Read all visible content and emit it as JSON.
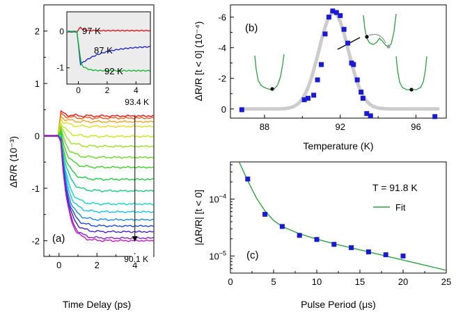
{
  "chart_data": [
    {
      "panel": "(a)",
      "type": "line",
      "xlabel": "Time Delay (ps)",
      "ylabel": "ΔR/R (10⁻³)",
      "xlim": [
        -0.8,
        5
      ],
      "ylim": [
        -2.3,
        2.5
      ],
      "xticks": [
        0,
        2,
        4
      ],
      "yticks": [
        -2,
        -1,
        0,
        1,
        2
      ],
      "temp_range": {
        "top": "93.4 K",
        "bottom": "90.1 K"
      },
      "arrow": {
        "x": 4,
        "y_start": 0.4,
        "y_end": -2.02
      },
      "series": [
        {
          "color": "#ee1111",
          "peak": 0.45,
          "level": 0.38
        },
        {
          "color": "#f05818",
          "peak": 0.42,
          "level": 0.34
        },
        {
          "color": "#f2a020",
          "peak": 0.37,
          "level": 0.27
        },
        {
          "color": "#e6dc20",
          "peak": 0.32,
          "level": 0.18
        },
        {
          "color": "#c4e818",
          "peak": 0.26,
          "level": -0.01
        },
        {
          "color": "#9ae01c",
          "peak": 0.2,
          "level": -0.2
        },
        {
          "color": "#6ad820",
          "peak": 0.13,
          "level": -0.41
        },
        {
          "color": "#3cd028",
          "peak": 0.07,
          "level": -0.6
        },
        {
          "color": "#20c840",
          "peak": 0.03,
          "level": -0.83
        },
        {
          "color": "#14c880",
          "peak": 0.0,
          "level": -1.05
        },
        {
          "color": "#10d2c8",
          "peak": -0.03,
          "level": -1.3
        },
        {
          "color": "#14c0e4",
          "peak": -0.05,
          "level": -1.45
        },
        {
          "color": "#1a88e0",
          "peak": -0.06,
          "level": -1.6
        },
        {
          "color": "#1c48d8",
          "peak": -0.08,
          "level": -1.72
        },
        {
          "color": "#3a22c8",
          "peak": -0.1,
          "level": -1.83
        },
        {
          "color": "#8c1cc8",
          "peak": -0.11,
          "level": -1.95
        },
        {
          "color": "#c018c0",
          "peak": -0.12,
          "level": -2.0
        }
      ],
      "inset": {
        "xlim": [
          -0.8,
          5
        ],
        "ylim": [
          -1.45,
          0.55
        ],
        "xticks": [
          0,
          2,
          4
        ],
        "yticks": [
          -1,
          0
        ],
        "series": [
          {
            "name": "97 K",
            "color": "#e8101a",
            "level": 0.03
          },
          {
            "name": "87 K",
            "color": "#1c28d4",
            "level": -0.42
          },
          {
            "name": "92 K",
            "color": "#10b830",
            "level": -1.08
          }
        ]
      }
    },
    {
      "panel": "(b)",
      "type": "scatter",
      "xlabel": "Temperature (K)",
      "ylabel": "ΔR/R [t < 0] (10⁻⁴)",
      "xlim": [
        86.2,
        97.6
      ],
      "ylim": [
        0.6,
        -6.8
      ],
      "xticks": [
        88,
        92,
        96
      ],
      "yticks": [
        0,
        -2,
        -4,
        -6
      ],
      "points": [
        [
          86.8,
          0.05
        ],
        [
          90.1,
          -0.6
        ],
        [
          90.3,
          -0.7
        ],
        [
          90.6,
          -0.9
        ],
        [
          90.8,
          -1.9
        ],
        [
          91.0,
          -2.9
        ],
        [
          91.2,
          -4.9
        ],
        [
          91.4,
          -6.0
        ],
        [
          91.6,
          -6.4
        ],
        [
          91.8,
          -6.3
        ],
        [
          92.0,
          -6.1
        ],
        [
          92.2,
          -5.2
        ],
        [
          92.4,
          -4.3
        ],
        [
          92.6,
          -3.0
        ],
        [
          92.7,
          -2.9
        ],
        [
          92.9,
          -1.9
        ],
        [
          93.1,
          -1.1
        ],
        [
          93.2,
          -0.7
        ],
        [
          93.4,
          0.3
        ],
        [
          93.6,
          0.45
        ],
        [
          97.0,
          0.5
        ]
      ],
      "fit": {
        "color": "#cccccc",
        "center": 91.65,
        "sigma": 0.78,
        "amplitude": -6.3
      }
    },
    {
      "panel": "(c)",
      "type": "scatter",
      "xlabel": "Pulse Period (μs)",
      "ylabel": "|ΔR/R| [t < 0]",
      "xlim": [
        0,
        25
      ],
      "ylim": [
        5e-06,
        0.00045
      ],
      "yscale": "log",
      "xticks": [
        0,
        5,
        10,
        15,
        20,
        25
      ],
      "yticks": [
        {
          "value": 1e-05,
          "label": "10",
          "exp": "−5"
        },
        {
          "value": 0.0001,
          "label": "10",
          "exp": "−4"
        }
      ],
      "annotation": "T = 91.8 K",
      "legend": {
        "label": "Fit",
        "placement": "top-right"
      },
      "points": [
        [
          2,
          0.000225
        ],
        [
          4,
          5.4e-05
        ],
        [
          6,
          3.3e-05
        ],
        [
          8,
          2.3e-05
        ],
        [
          10,
          1.95e-05
        ],
        [
          12,
          1.6e-05
        ],
        [
          14,
          1.4e-05
        ],
        [
          16,
          1.18e-05
        ],
        [
          18,
          1.05e-05
        ],
        [
          20,
          1e-05
        ]
      ],
      "fit": {
        "color": "#2ca040",
        "x": [
          1,
          1.5,
          2,
          3,
          4,
          5,
          6,
          8,
          10,
          12,
          15,
          18,
          21,
          25
        ],
        "y": [
          0.00045,
          0.00031,
          0.00021,
          0.000105,
          6.2e-05,
          4.2e-05,
          3.3e-05,
          2.45e-05,
          1.98e-05,
          1.64e-05,
          1.28e-05,
          1e-05,
          7.8e-06,
          5.6e-06
        ]
      }
    }
  ]
}
